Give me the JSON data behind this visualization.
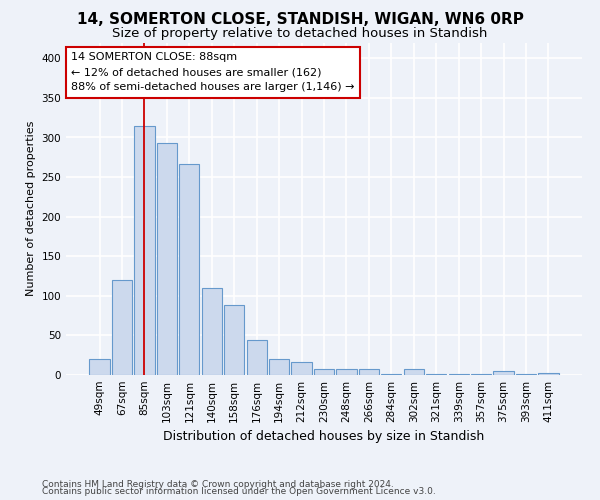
{
  "title1": "14, SOMERTON CLOSE, STANDISH, WIGAN, WN6 0RP",
  "title2": "Size of property relative to detached houses in Standish",
  "xlabel": "Distribution of detached houses by size in Standish",
  "ylabel": "Number of detached properties",
  "bar_labels": [
    "49sqm",
    "67sqm",
    "85sqm",
    "103sqm",
    "121sqm",
    "140sqm",
    "158sqm",
    "176sqm",
    "194sqm",
    "212sqm",
    "230sqm",
    "248sqm",
    "266sqm",
    "284sqm",
    "302sqm",
    "321sqm",
    "339sqm",
    "357sqm",
    "375sqm",
    "393sqm",
    "411sqm"
  ],
  "bar_values": [
    20,
    120,
    315,
    293,
    267,
    110,
    89,
    44,
    20,
    16,
    8,
    7,
    7,
    1,
    7,
    1,
    1,
    1,
    5,
    1,
    3
  ],
  "bar_color": "#ccd9ed",
  "bar_edge_color": "#6699cc",
  "annotation_line1": "14 SOMERTON CLOSE: 88sqm",
  "annotation_line2": "← 12% of detached houses are smaller (162)",
  "annotation_line3": "88% of semi-detached houses are larger (1,146) →",
  "annotation_box_facecolor": "#ffffff",
  "annotation_box_edgecolor": "#cc0000",
  "vline_color": "#cc0000",
  "vline_x_index": 2,
  "footer1": "Contains HM Land Registry data © Crown copyright and database right 2024.",
  "footer2": "Contains public sector information licensed under the Open Government Licence v3.0.",
  "ylim": [
    0,
    420
  ],
  "yticks": [
    0,
    50,
    100,
    150,
    200,
    250,
    300,
    350,
    400
  ],
  "background_color": "#eef2f9",
  "grid_color": "#ffffff",
  "title1_fontsize": 11,
  "title2_fontsize": 9.5,
  "xlabel_fontsize": 9,
  "ylabel_fontsize": 8,
  "tick_fontsize": 7.5,
  "annotation_fontsize": 8,
  "footer_fontsize": 6.5
}
